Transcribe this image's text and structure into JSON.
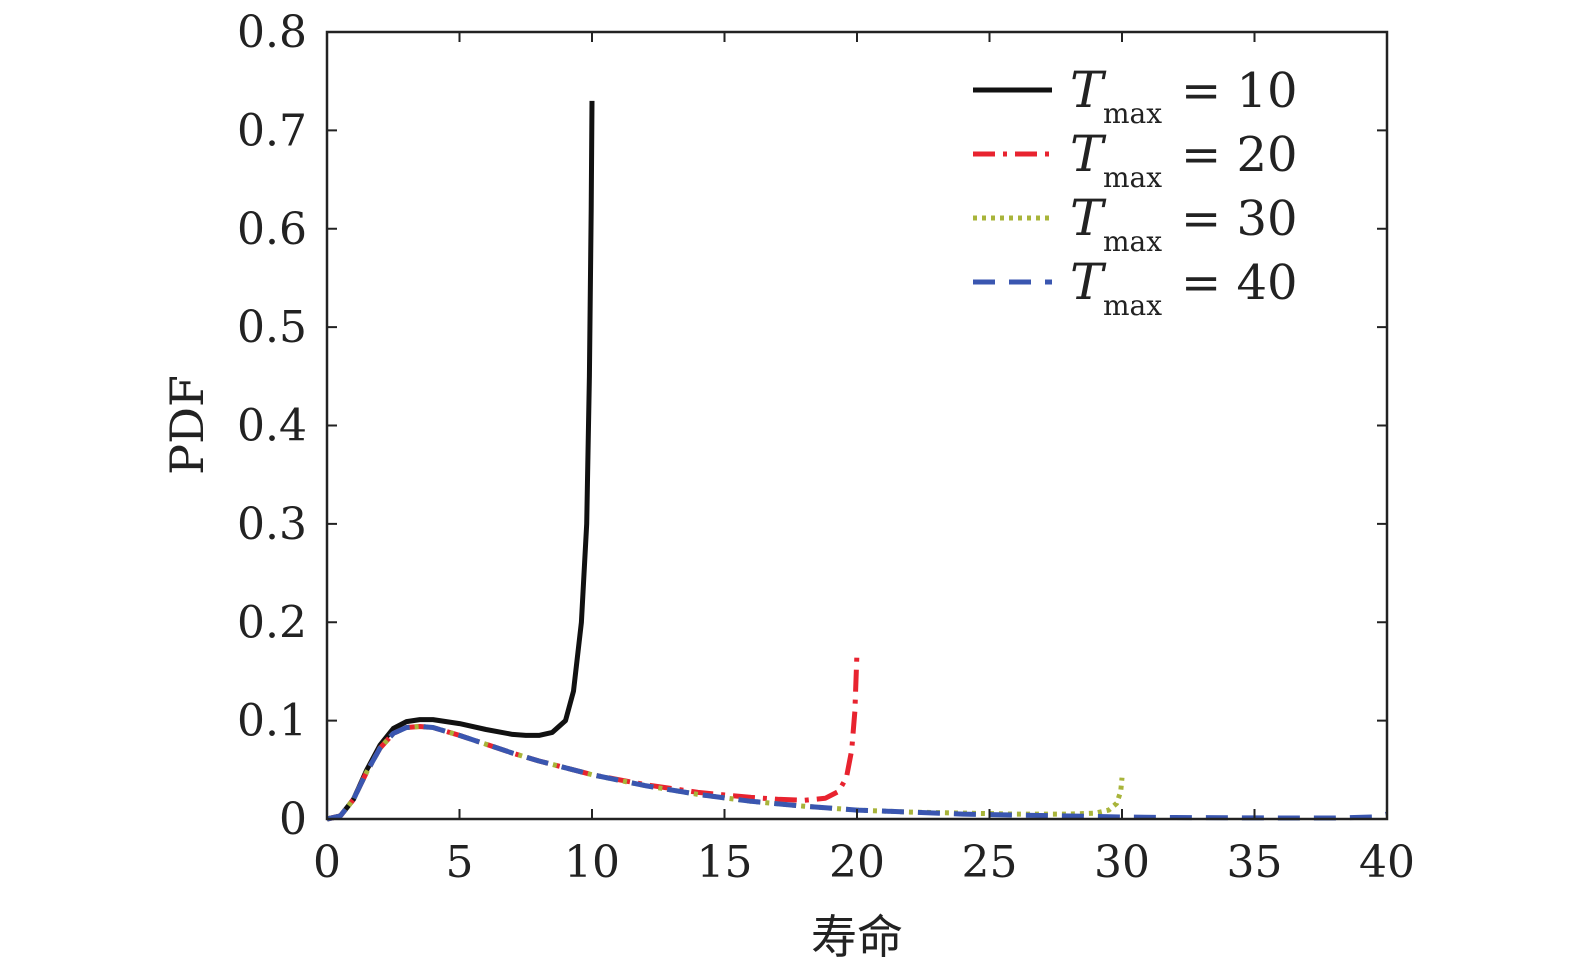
{
  "chart_data": {
    "type": "line",
    "xlabel": "寿命",
    "ylabel": "PDF",
    "xlim": [
      0,
      40
    ],
    "ylim": [
      0,
      0.8
    ],
    "xticks": [
      "0",
      "5",
      "10",
      "15",
      "20",
      "25",
      "30",
      "35",
      "40"
    ],
    "yticks": [
      "0",
      "0.1",
      "0.2",
      "0.3",
      "0.4",
      "0.5",
      "0.6",
      "0.7",
      "0.8"
    ],
    "legend_position": "top-right",
    "grid": false,
    "series": [
      {
        "legend_symbol": "T",
        "legend_subscript": "max",
        "legend_value": "= 10",
        "color": "#111111",
        "dash": "solid",
        "x": [
          0,
          0.5,
          1,
          1.5,
          2,
          2.5,
          3,
          3.5,
          4,
          5,
          6,
          7,
          7.5,
          8,
          8.5,
          9,
          9.3,
          9.6,
          9.8,
          9.9,
          9.97,
          10
        ],
        "y": [
          0,
          0.003,
          0.02,
          0.05,
          0.075,
          0.092,
          0.099,
          0.101,
          0.101,
          0.097,
          0.091,
          0.086,
          0.085,
          0.085,
          0.088,
          0.1,
          0.13,
          0.2,
          0.3,
          0.45,
          0.62,
          0.73
        ]
      },
      {
        "legend_symbol": "T",
        "legend_subscript": "max",
        "legend_value": "= 20",
        "color": "#e8232f",
        "dash": "dashdot",
        "x": [
          0,
          0.5,
          1,
          1.5,
          2,
          2.5,
          3,
          3.5,
          4,
          5,
          6,
          7,
          8,
          10,
          12,
          14,
          16,
          17,
          18,
          18.8,
          19.3,
          19.6,
          19.8,
          19.92,
          20
        ],
        "y": [
          0,
          0.003,
          0.02,
          0.048,
          0.072,
          0.087,
          0.093,
          0.094,
          0.093,
          0.085,
          0.076,
          0.067,
          0.059,
          0.045,
          0.035,
          0.027,
          0.022,
          0.02,
          0.019,
          0.021,
          0.028,
          0.042,
          0.07,
          0.11,
          0.17
        ]
      },
      {
        "legend_symbol": "T",
        "legend_subscript": "max",
        "legend_value": "= 30",
        "color": "#a8b43a",
        "dash": "dotted",
        "x": [
          0,
          0.5,
          1,
          1.5,
          2,
          2.5,
          3,
          3.5,
          4,
          5,
          6,
          7,
          8,
          10,
          12,
          14,
          16,
          18,
          20,
          22,
          24,
          26,
          28,
          29,
          29.5,
          29.8,
          29.95,
          30
        ],
        "y": [
          0,
          0.003,
          0.02,
          0.048,
          0.072,
          0.087,
          0.093,
          0.094,
          0.093,
          0.085,
          0.076,
          0.067,
          0.059,
          0.045,
          0.034,
          0.025,
          0.018,
          0.013,
          0.009,
          0.007,
          0.006,
          0.005,
          0.005,
          0.006,
          0.009,
          0.016,
          0.028,
          0.042
        ]
      },
      {
        "legend_symbol": "T",
        "legend_subscript": "max",
        "legend_value": "= 40",
        "color": "#3a56b0",
        "dash": "dashed",
        "x": [
          0,
          0.5,
          1,
          1.5,
          2,
          2.5,
          3,
          3.5,
          4,
          5,
          6,
          7,
          8,
          10,
          12,
          14,
          16,
          18,
          20,
          22,
          24,
          26,
          28,
          30,
          32,
          34,
          36,
          38,
          39.5,
          40
        ],
        "y": [
          0,
          0.003,
          0.02,
          0.048,
          0.072,
          0.087,
          0.093,
          0.094,
          0.093,
          0.085,
          0.076,
          0.067,
          0.059,
          0.045,
          0.034,
          0.025,
          0.018,
          0.013,
          0.009,
          0.007,
          0.005,
          0.004,
          0.003,
          0.002,
          0.0015,
          0.0012,
          0.001,
          0.001,
          0.002,
          0.005
        ]
      }
    ]
  }
}
